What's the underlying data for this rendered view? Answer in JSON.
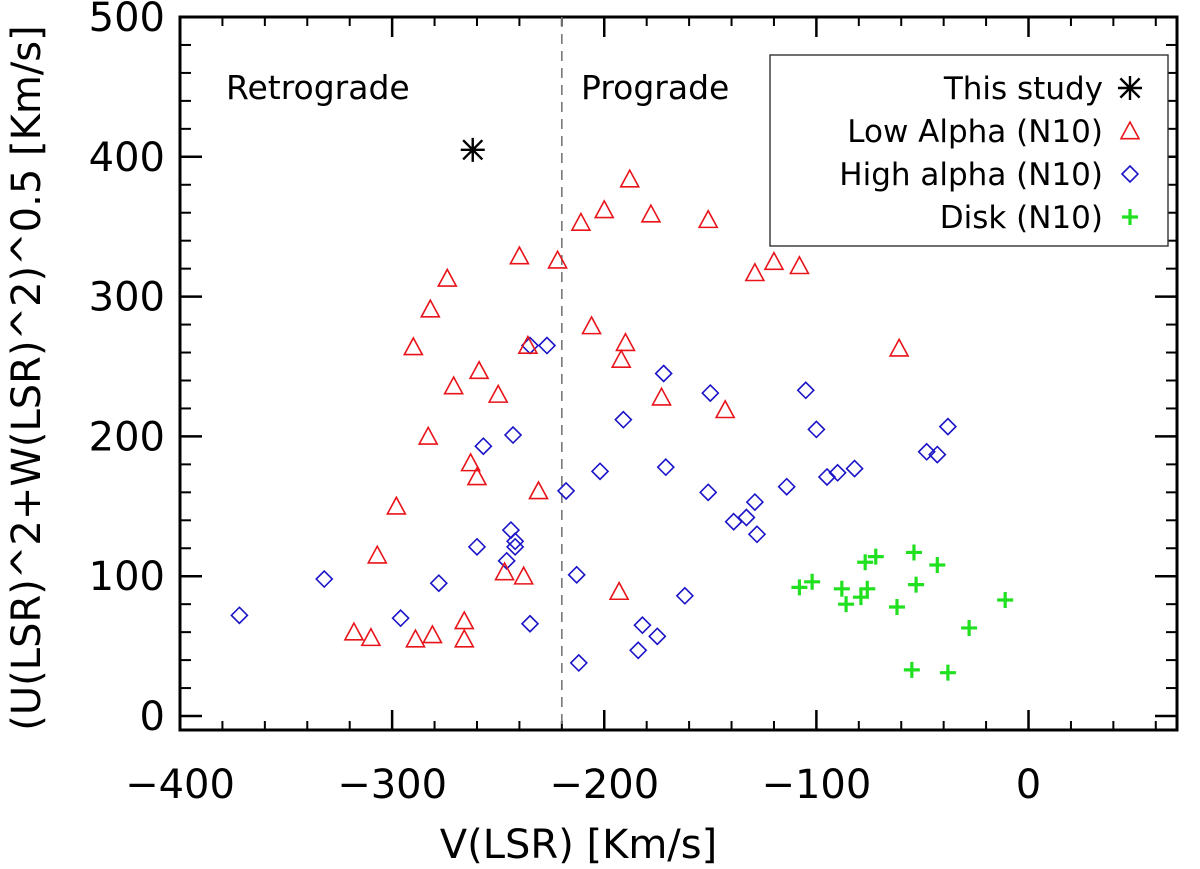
{
  "chart_data": {
    "type": "scatter",
    "xlabel": "V(LSR) [Km/s]",
    "ylabel": "(U(LSR)^2+W(LSR)^2)^0.5 [Km/s]",
    "xlim": [
      -400,
      70
    ],
    "ylim": [
      -10,
      500
    ],
    "xticks": [
      -400,
      -300,
      -200,
      -100,
      0
    ],
    "xtick_labels": [
      "−400",
      "−300",
      "−200",
      "−100",
      "0"
    ],
    "yticks": [
      0,
      100,
      200,
      300,
      400,
      500
    ],
    "ytick_labels": [
      "0",
      "100",
      "200",
      "300",
      "400",
      "500"
    ],
    "vline_x": -220,
    "region_labels": [
      "Retrograde",
      "Prograde"
    ],
    "legend_position": "top-right",
    "series": [
      {
        "name": "This study",
        "marker": "asterisk",
        "color": "#000000",
        "points": [
          [
            -262,
            405
          ]
        ]
      },
      {
        "name": "Low Alpha (N10)",
        "marker": "triangle",
        "color": "#e8141a",
        "points": [
          [
            -318,
            60
          ],
          [
            -310,
            56
          ],
          [
            -307,
            115
          ],
          [
            -298,
            150
          ],
          [
            -290,
            264
          ],
          [
            -289,
            55
          ],
          [
            -283,
            200
          ],
          [
            -282,
            291
          ],
          [
            -281,
            58
          ],
          [
            -274,
            313
          ],
          [
            -271,
            236
          ],
          [
            -266,
            68
          ],
          [
            -266,
            55
          ],
          [
            -263,
            181
          ],
          [
            -260,
            171
          ],
          [
            -259,
            247
          ],
          [
            -250,
            230
          ],
          [
            -247,
            103
          ],
          [
            -240,
            329
          ],
          [
            -238,
            100
          ],
          [
            -236,
            265
          ],
          [
            -231,
            161
          ],
          [
            -222,
            326
          ],
          [
            -211,
            353
          ],
          [
            -206,
            279
          ],
          [
            -200,
            362
          ],
          [
            -193,
            89
          ],
          [
            -192,
            255
          ],
          [
            -190,
            267
          ],
          [
            -188,
            384
          ],
          [
            -178,
            359
          ],
          [
            -173,
            228
          ],
          [
            -151,
            355
          ],
          [
            -143,
            219
          ],
          [
            -129,
            317
          ],
          [
            -120,
            325
          ],
          [
            -108,
            322
          ],
          [
            -61,
            263
          ]
        ]
      },
      {
        "name": "High alpha (N10)",
        "marker": "diamond",
        "color": "#1a14c8",
        "points": [
          [
            -372,
            72
          ],
          [
            -332,
            98
          ],
          [
            -296,
            70
          ],
          [
            -278,
            95
          ],
          [
            -260,
            121
          ],
          [
            -257,
            193
          ],
          [
            -246,
            111
          ],
          [
            -244,
            133
          ],
          [
            -243,
            201
          ],
          [
            -242,
            121
          ],
          [
            -242,
            125
          ],
          [
            -235,
            265
          ],
          [
            -235,
            66
          ],
          [
            -227,
            265
          ],
          [
            -218,
            161
          ],
          [
            -213,
            101
          ],
          [
            -212,
            38
          ],
          [
            -202,
            175
          ],
          [
            -191,
            212
          ],
          [
            -184,
            47
          ],
          [
            -182,
            65
          ],
          [
            -175,
            57
          ],
          [
            -172,
            245
          ],
          [
            -171,
            178
          ],
          [
            -162,
            86
          ],
          [
            -151,
            160
          ],
          [
            -150,
            231
          ],
          [
            -139,
            139
          ],
          [
            -133,
            142
          ],
          [
            -129,
            153
          ],
          [
            -128,
            130
          ],
          [
            -114,
            164
          ],
          [
            -105,
            233
          ],
          [
            -100,
            205
          ],
          [
            -95,
            171
          ],
          [
            -90,
            174
          ],
          [
            -82,
            177
          ],
          [
            -48,
            189
          ],
          [
            -43,
            187
          ],
          [
            -38,
            207
          ]
        ]
      },
      {
        "name": "Disk (N10)",
        "marker": "plus",
        "color": "#20e020",
        "points": [
          [
            -108,
            92
          ],
          [
            -102,
            96
          ],
          [
            -88,
            91
          ],
          [
            -86,
            80
          ],
          [
            -79,
            85
          ],
          [
            -77,
            110
          ],
          [
            -76,
            91
          ],
          [
            -72,
            114
          ],
          [
            -62,
            78
          ],
          [
            -55,
            33
          ],
          [
            -54,
            117
          ],
          [
            -53,
            94
          ],
          [
            -43,
            108
          ],
          [
            -38,
            31
          ],
          [
            -28,
            63
          ],
          [
            -11,
            83
          ]
        ]
      }
    ]
  }
}
